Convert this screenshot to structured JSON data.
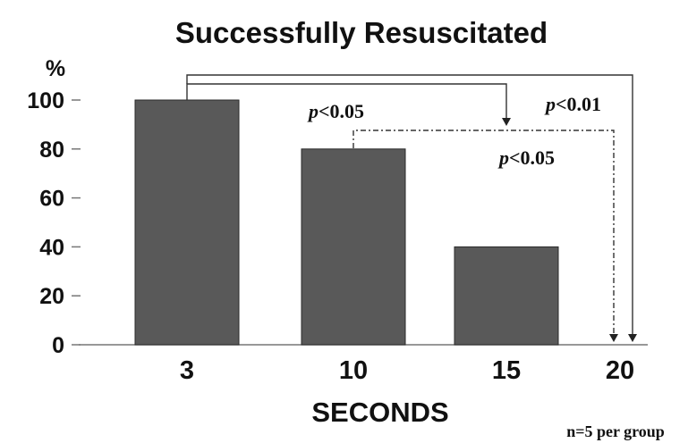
{
  "chart_data": {
    "type": "bar",
    "title": "Successfully Resuscitated",
    "ylabel": "%",
    "xlabel": "SECONDS",
    "categories": [
      "3",
      "10",
      "15",
      "20"
    ],
    "values": [
      100,
      80,
      40,
      0
    ],
    "ylim": [
      0,
      100
    ],
    "yticks": [
      "100",
      "80",
      "60",
      "40",
      "20",
      "0"
    ],
    "grid": false,
    "annotations": [
      {
        "prefix": "p",
        "text": "<0.05",
        "from": "3",
        "to": "15"
      },
      {
        "prefix": "p",
        "text": "<0.01",
        "from": "3",
        "to": "20"
      },
      {
        "prefix": "p",
        "text": "<0.05",
        "from": "10",
        "to": "20"
      }
    ],
    "note": "n=5 per group"
  }
}
